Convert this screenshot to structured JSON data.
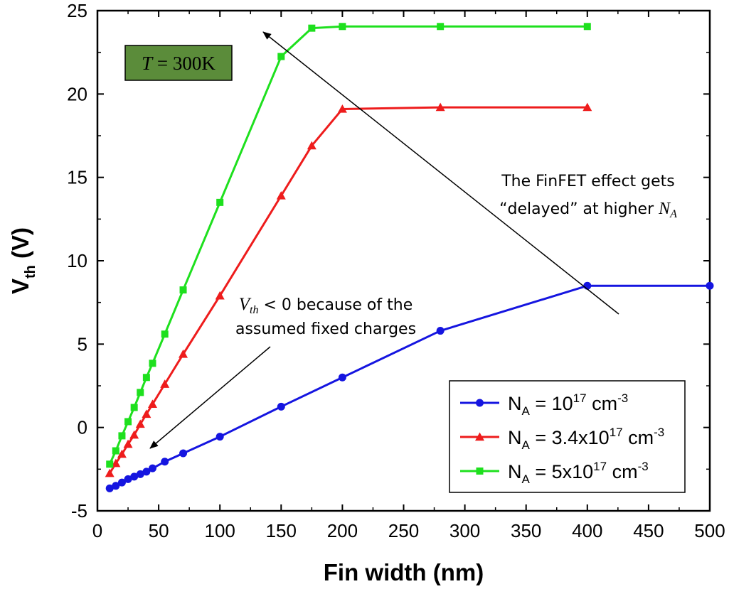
{
  "chart_data": {
    "type": "line",
    "xlabel": "Fin width (nm)",
    "ylabel_main": "V",
    "ylabel_sub": "th",
    "ylabel_unit": "(V)",
    "xlim": [
      0,
      500
    ],
    "ylim": [
      -5,
      25
    ],
    "xticks": [
      0,
      50,
      100,
      150,
      200,
      250,
      300,
      350,
      400,
      450,
      500
    ],
    "yticks": [
      -5,
      0,
      5,
      10,
      15,
      20,
      25
    ],
    "grid": false,
    "legend_position": "bottom-right",
    "series": [
      {
        "name_prefix": "N",
        "name_sub": "A",
        "name_mid": " = 10",
        "name_sup": "17",
        "name_unit": " cm",
        "name_unit_sup": "-3",
        "color": "#1515e0",
        "marker": "circle",
        "x": [
          10,
          15,
          20,
          25,
          30,
          35,
          40,
          45,
          55,
          70,
          100,
          150,
          200,
          280,
          400,
          500
        ],
        "y": [
          -3.65,
          -3.5,
          -3.3,
          -3.1,
          -2.95,
          -2.8,
          -2.65,
          -2.45,
          -2.05,
          -1.55,
          -0.55,
          1.25,
          3.0,
          5.8,
          8.5,
          8.5
        ]
      },
      {
        "name_prefix": "N",
        "name_sub": "A",
        "name_mid": " = 3.4x10",
        "name_sup": "17",
        "name_unit": " cm",
        "name_unit_sup": "-3",
        "color": "#ee1c1c",
        "marker": "triangle",
        "x": [
          10,
          15,
          20,
          25,
          30,
          35,
          40,
          45,
          55,
          70,
          100,
          150,
          175,
          200,
          280,
          400
        ],
        "y": [
          -2.75,
          -2.15,
          -1.6,
          -1.0,
          -0.45,
          0.2,
          0.8,
          1.4,
          2.6,
          4.4,
          7.9,
          13.9,
          16.9,
          19.1,
          19.2,
          19.2
        ]
      },
      {
        "name_prefix": "N",
        "name_sub": "A",
        "name_mid": " = 5x10",
        "name_sup": "17",
        "name_unit": " cm",
        "name_unit_sup": "-3",
        "color": "#1ee01e",
        "marker": "square",
        "x": [
          10,
          15,
          20,
          25,
          30,
          35,
          40,
          45,
          55,
          70,
          100,
          150,
          175,
          200,
          280,
          400
        ],
        "y": [
          -2.2,
          -1.4,
          -0.5,
          0.35,
          1.2,
          2.1,
          3.0,
          3.85,
          5.6,
          8.25,
          13.5,
          22.25,
          23.95,
          24.05,
          24.05,
          24.05
        ]
      }
    ],
    "annotations": {
      "temp_badge": {
        "italic": "T",
        "rest": " = 300K",
        "fill": "#5b8c3a"
      },
      "finfet_line1": "The FinFET effect gets",
      "finfet_line2": "“delayed” at higher ",
      "finfet_italic": "N",
      "finfet_sub": "A",
      "vth_italic": "V",
      "vth_sub": "th",
      "vth_rest": " < 0 because of the",
      "vth_line2": "assumed fixed charges"
    }
  }
}
